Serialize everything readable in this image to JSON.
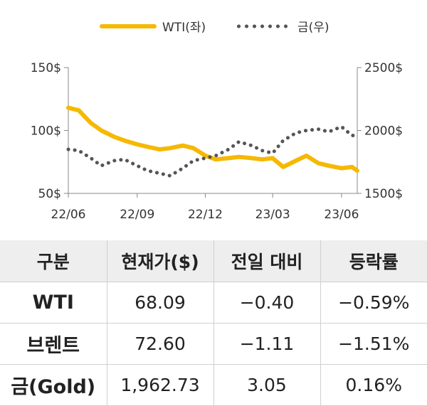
{
  "chart_data": {
    "type": "line",
    "series": [
      {
        "name": "WTI(좌)",
        "axis": "left",
        "color": "#f6b800",
        "style": "solid",
        "x": [
          "2022-06-01",
          "2022-06-15",
          "2022-07-01",
          "2022-07-15",
          "2022-08-01",
          "2022-08-15",
          "2022-09-01",
          "2022-09-15",
          "2022-10-01",
          "2022-10-15",
          "2022-11-01",
          "2022-11-15",
          "2022-12-01",
          "2022-12-15",
          "2023-01-01",
          "2023-01-15",
          "2023-02-01",
          "2023-02-15",
          "2023-03-01",
          "2023-03-15",
          "2023-04-01",
          "2023-04-15",
          "2023-05-01",
          "2023-05-15",
          "2023-06-01",
          "2023-06-15",
          "2023-06-22"
        ],
        "values": [
          118,
          116,
          106,
          100,
          95,
          92,
          89,
          87,
          85,
          86,
          88,
          86,
          80,
          77,
          78,
          79,
          78,
          77,
          78,
          71,
          76,
          80,
          74,
          72,
          70,
          71,
          68
        ]
      },
      {
        "name": "금(우)",
        "axis": "right",
        "color": "#555555",
        "style": "dotted",
        "x": [
          "2022-06-01",
          "2022-06-15",
          "2022-07-01",
          "2022-07-15",
          "2022-08-01",
          "2022-08-15",
          "2022-09-01",
          "2022-09-15",
          "2022-10-01",
          "2022-10-15",
          "2022-11-01",
          "2022-11-15",
          "2022-12-01",
          "2022-12-15",
          "2023-01-01",
          "2023-01-15",
          "2023-02-01",
          "2023-02-15",
          "2023-03-01",
          "2023-03-15",
          "2023-04-01",
          "2023-04-15",
          "2023-05-01",
          "2023-05-15",
          "2023-06-01",
          "2023-06-15",
          "2023-06-22"
        ],
        "values": [
          1850,
          1840,
          1780,
          1720,
          1760,
          1770,
          1720,
          1680,
          1660,
          1640,
          1700,
          1760,
          1780,
          1800,
          1850,
          1910,
          1880,
          1840,
          1820,
          1920,
          1980,
          2000,
          2010,
          1990,
          2030,
          1960,
          1962
        ]
      }
    ],
    "x_ticks": [
      "22/06",
      "22/09",
      "22/12",
      "23/03",
      "23/06"
    ],
    "x_tick_dates": [
      "2022-06-01",
      "2022-09-01",
      "2022-12-01",
      "2023-03-01",
      "2023-06-01"
    ],
    "y_left": {
      "ticks": [
        150,
        100,
        50
      ],
      "tick_labels": [
        "150$",
        "100$",
        "50$"
      ],
      "range": [
        50,
        150
      ]
    },
    "y_right": {
      "ticks": [
        2500,
        2000,
        1500
      ],
      "tick_labels": [
        "2500$",
        "2000$",
        "1500$"
      ],
      "range": [
        1500,
        2500
      ]
    },
    "grid": false,
    "legend_position": "top-center"
  },
  "legend": {
    "wti": "WTI(좌)",
    "gold": "금(우)"
  },
  "table": {
    "headers": [
      "구분",
      "현재가($)",
      "전일 대비",
      "등락률"
    ],
    "rows": [
      [
        "WTI",
        "68.09",
        "−0.40",
        "−0.59%"
      ],
      [
        "브렌트",
        "72.60",
        "−1.11",
        "−1.51%"
      ],
      [
        "금(Gold)",
        "1,962.73",
        "3.05",
        "0.16%"
      ]
    ]
  }
}
